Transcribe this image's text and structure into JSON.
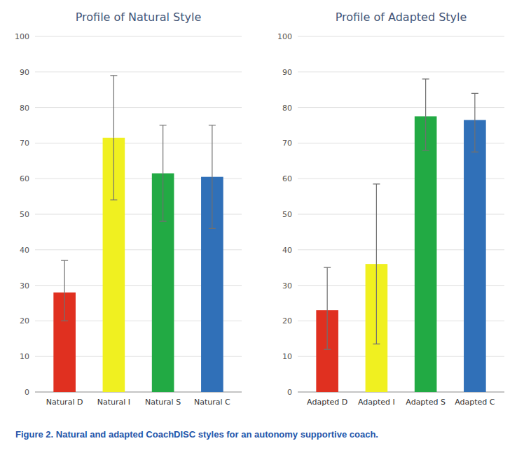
{
  "chart_data": [
    {
      "type": "bar",
      "title": "Profile of Natural Style",
      "categories": [
        "Natural D",
        "Natural I",
        "Natural S",
        "Natural C"
      ],
      "values": [
        28.0,
        71.5,
        61.5,
        60.5
      ],
      "errors_lower": [
        8.0,
        17.5,
        13.5,
        14.5
      ],
      "errors_upper": [
        9.0,
        17.5,
        13.5,
        14.5
      ],
      "colors": [
        "#e03020",
        "#f0f020",
        "#22aa44",
        "#3070b8"
      ],
      "ylim": [
        0,
        100
      ],
      "yticks": [
        0,
        10,
        20,
        30,
        40,
        50,
        60,
        70,
        80,
        90,
        100
      ],
      "grid": true
    },
    {
      "type": "bar",
      "title": "Profile of Adapted Style",
      "categories": [
        "Adapted D",
        "Adapted I",
        "Adapted S",
        "Adapted C"
      ],
      "values": [
        23.0,
        36.0,
        77.5,
        76.5
      ],
      "errors_lower": [
        11.0,
        22.5,
        9.5,
        9.0
      ],
      "errors_upper": [
        12.0,
        22.5,
        10.5,
        7.5
      ],
      "colors": [
        "#e03020",
        "#f0f020",
        "#22aa44",
        "#3070b8"
      ],
      "ylim": [
        0,
        100
      ],
      "yticks": [
        0,
        10,
        20,
        30,
        40,
        50,
        60,
        70,
        80,
        90,
        100
      ],
      "grid": true
    }
  ],
  "caption": "Figure 2. Natural and adapted CoachDISC styles for an autonomy supportive coach."
}
